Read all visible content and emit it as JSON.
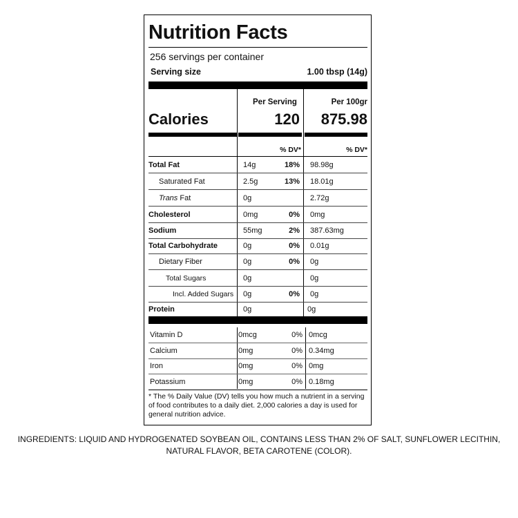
{
  "label": {
    "title": "Nutrition Facts",
    "servings_per_container": "256 servings per container",
    "serving_size_label": "Serving size",
    "serving_size_value": "1.00 tbsp (14g)",
    "per_serving_header": "Per Serving",
    "per_100g_header": "Per 100gr",
    "calories_label": "Calories",
    "calories_per_serving": "120",
    "calories_per_100g": "875.98",
    "dv_header_serving": "% DV*",
    "dv_header_100g": "% DV*",
    "nutrients": [
      {
        "name": "Total Fat",
        "amount": "14g",
        "dv": "18%",
        "per100": "98.98g"
      },
      {
        "name": "Saturated Fat",
        "amount": "2.5g",
        "dv": "13%",
        "per100": "18.01g"
      },
      {
        "name_italic": "Trans",
        "name_rest": " Fat",
        "amount": "0g",
        "dv": "",
        "per100": "2.72g"
      },
      {
        "name": "Cholesterol",
        "amount": "0mg",
        "dv": "0%",
        "per100": "0mg"
      },
      {
        "name": "Sodium",
        "amount": "55mg",
        "dv": "2%",
        "per100": "387.63mg"
      },
      {
        "name": "Total Carbohydrate",
        "amount": "0g",
        "dv": "0%",
        "per100": "0.01g"
      },
      {
        "name": "Dietary Fiber",
        "amount": "0g",
        "dv": "0%",
        "per100": "0g"
      },
      {
        "name": "Total Sugars",
        "amount": "0g",
        "dv": "",
        "per100": "0g"
      },
      {
        "name": "Incl. Added Sugars",
        "amount": "0g",
        "dv": "0%",
        "per100": "0g"
      },
      {
        "name": "Protein",
        "amount": "0g",
        "dv": "",
        "per100": "0g"
      }
    ],
    "vitamins": [
      {
        "name": "Vitamin D",
        "amount": "0mcg",
        "dv": "0%",
        "per100": "0mcg"
      },
      {
        "name": "Calcium",
        "amount": "0mg",
        "dv": "0%",
        "per100": "0.34mg"
      },
      {
        "name": "Iron",
        "amount": "0mg",
        "dv": "0%",
        "per100": "0mg"
      },
      {
        "name": "Potassium",
        "amount": "0mg",
        "dv": "0%",
        "per100": "0.18mg"
      }
    ],
    "footnote": "* The % Daily Value (DV) tells you how much a nutrient in a serving of food contributes to a daily diet. 2,000 calories a day is used for general nutrition advice."
  },
  "ingredients": {
    "line1": "INGREDIENTS: LIQUID AND HYDROGENATED SOYBEAN OIL, CONTAINS LESS THAN 2% OF SALT, SUNFLOWER LECITHIN,",
    "line2": "NATURAL FLAVOR, BETA CAROTENE (COLOR)."
  }
}
